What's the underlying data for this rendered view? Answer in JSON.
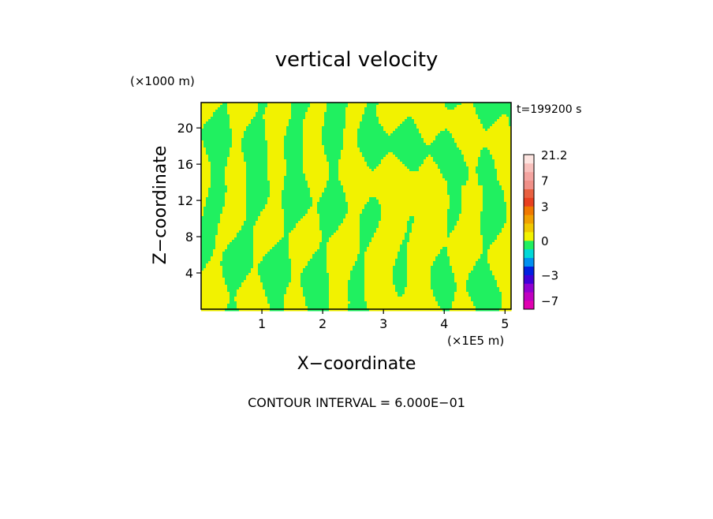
{
  "chart_data": {
    "type": "heatmap",
    "title": "vertical velocity",
    "xlabel": "X−coordinate",
    "ylabel": "Z−coordinate",
    "x_unit": "(×1E5 m)",
    "y_unit": "(×1000 m)",
    "time_label": "t=199200 s",
    "contour_interval_label": "CONTOUR INTERVAL = 6.000E−01",
    "xlim": [
      0,
      5.1
    ],
    "ylim": [
      0,
      22.8
    ],
    "x_ticks": [
      1,
      2,
      3,
      4,
      5
    ],
    "x_tick_labels": [
      "1",
      "2",
      "3",
      "4",
      "5"
    ],
    "y_ticks": [
      4,
      8,
      12,
      16,
      20
    ],
    "y_tick_labels": [
      "4",
      "8",
      "12",
      "16",
      "20"
    ],
    "dominant_colors": {
      "positive_small": "#f2f200",
      "negative_small": "#20f060"
    },
    "colorbar": {
      "levels": [
        {
          "from": -10,
          "to": -7,
          "color": "#e000b0"
        },
        {
          "from": -7,
          "to": -5,
          "color": "#c000c0"
        },
        {
          "from": -5,
          "to": -4,
          "color": "#9000d0"
        },
        {
          "from": -4,
          "to": -3,
          "color": "#4000d8"
        },
        {
          "from": -3,
          "to": -2,
          "color": "#0020e0"
        },
        {
          "from": -2,
          "to": -1,
          "color": "#0090f0"
        },
        {
          "from": -1,
          "to": -0.6,
          "color": "#00d8d8"
        },
        {
          "from": -0.6,
          "to": 0,
          "color": "#20f060"
        },
        {
          "from": 0,
          "to": 0.6,
          "color": "#f2f200"
        },
        {
          "from": 0.6,
          "to": 1,
          "color": "#f0c800"
        },
        {
          "from": 1,
          "to": 2,
          "color": "#f0a000"
        },
        {
          "from": 2,
          "to": 3,
          "color": "#f07800"
        },
        {
          "from": 3,
          "to": 4,
          "color": "#e84020"
        },
        {
          "from": 4,
          "to": 5,
          "color": "#e86040"
        },
        {
          "from": 5,
          "to": 7,
          "color": "#f09088"
        },
        {
          "from": 7,
          "to": 10,
          "color": "#f4a4a0"
        },
        {
          "from": 10,
          "to": 15,
          "color": "#f8c0bc"
        },
        {
          "from": 15,
          "to": 21.2,
          "color": "#fde4e0"
        }
      ],
      "labels": [
        {
          "value": 21.2,
          "text": "21.2"
        },
        {
          "value": 7,
          "text": "7"
        },
        {
          "value": 3,
          "text": "3"
        },
        {
          "value": 0,
          "text": "0"
        },
        {
          "value": -3,
          "text": "−3"
        },
        {
          "value": -7,
          "text": "−7"
        }
      ]
    }
  }
}
